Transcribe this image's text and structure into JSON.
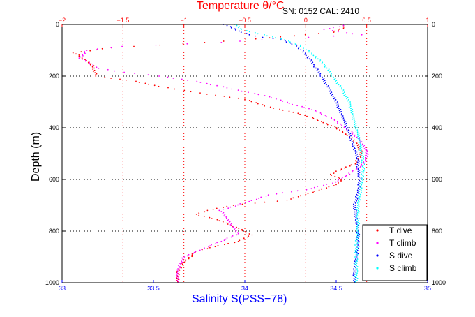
{
  "chart_data": {
    "type": "scatter",
    "title": "Temperature θ/°C",
    "serial_text": "SN: 0152  CAL: 2410",
    "xlabel": "Salinity S(PSS−78)",
    "ylabel": "Depth (m)",
    "grid": true,
    "legend_position": "bottom-right",
    "salinity_axis": {
      "lim": [
        33,
        35
      ],
      "ticks": [
        33,
        33.5,
        34,
        34.5,
        35
      ],
      "tick_labels": [
        "33",
        "33.5",
        "34",
        "34.5",
        "35"
      ],
      "color": "#0000ff"
    },
    "temperature_axis": {
      "lim": [
        -2,
        1
      ],
      "ticks": [
        -2,
        -1.5,
        -1,
        -0.5,
        0,
        0.5,
        1
      ],
      "tick_labels": [
        "−2",
        "−1.5",
        "−1",
        "−0.5",
        "0",
        "0.5",
        "1"
      ],
      "color": "#ff0000"
    },
    "depth_axis": {
      "lim": [
        0,
        1000
      ],
      "reversed": true,
      "ticks": [
        0,
        200,
        400,
        600,
        800,
        1000
      ],
      "tick_labels": [
        "0",
        "200",
        "400",
        "600",
        "800",
        "1000"
      ]
    },
    "series": [
      {
        "name": "T dive",
        "axis": "temperature",
        "color": "#ff0000",
        "points": [
          [
            0.3,
            0
          ],
          [
            0.32,
            10
          ],
          [
            0.22,
            30
          ],
          [
            0.0,
            40
          ],
          [
            -0.5,
            60
          ],
          [
            -1.0,
            75
          ],
          [
            -1.6,
            90
          ],
          [
            -1.9,
            110
          ],
          [
            -1.8,
            140
          ],
          [
            -1.75,
            160
          ],
          [
            -1.72,
            200
          ],
          [
            -1.4,
            220
          ],
          [
            -1.2,
            240
          ],
          [
            -1.0,
            255
          ],
          [
            -0.8,
            270
          ],
          [
            -0.5,
            290
          ],
          [
            -0.3,
            320
          ],
          [
            -0.1,
            340
          ],
          [
            0.05,
            360
          ],
          [
            0.15,
            380
          ],
          [
            0.25,
            400
          ],
          [
            0.35,
            430
          ],
          [
            0.42,
            460
          ],
          [
            0.45,
            490
          ],
          [
            0.45,
            510
          ],
          [
            0.4,
            540
          ],
          [
            0.3,
            560
          ],
          [
            0.2,
            580
          ],
          [
            0.3,
            600
          ],
          [
            0.25,
            620
          ],
          [
            0.05,
            650
          ],
          [
            -0.15,
            680
          ],
          [
            -0.6,
            700
          ],
          [
            -0.8,
            720
          ],
          [
            -0.9,
            735
          ],
          [
            -0.7,
            760
          ],
          [
            -0.55,
            790
          ],
          [
            -0.45,
            815
          ],
          [
            -0.55,
            840
          ],
          [
            -0.75,
            860
          ],
          [
            -0.9,
            880
          ],
          [
            -1.0,
            920
          ],
          [
            -1.05,
            960
          ],
          [
            -1.05,
            1000
          ]
        ]
      },
      {
        "name": "T climb",
        "axis": "temperature",
        "color": "#ff00ff",
        "points": [
          [
            0.35,
            0
          ],
          [
            0.15,
            20
          ],
          [
            0.45,
            40
          ],
          [
            -0.2,
            55
          ],
          [
            -0.7,
            70
          ],
          [
            -1.5,
            85
          ],
          [
            -1.8,
            100
          ],
          [
            -1.85,
            130
          ],
          [
            -1.7,
            170
          ],
          [
            -1.5,
            185
          ],
          [
            -1.2,
            200
          ],
          [
            -0.9,
            220
          ],
          [
            -0.6,
            250
          ],
          [
            -0.3,
            280
          ],
          [
            -0.1,
            310
          ],
          [
            0.05,
            330
          ],
          [
            0.2,
            360
          ],
          [
            0.3,
            390
          ],
          [
            0.38,
            420
          ],
          [
            0.45,
            450
          ],
          [
            0.5,
            490
          ],
          [
            0.5,
            520
          ],
          [
            0.45,
            550
          ],
          [
            0.35,
            580
          ],
          [
            0.25,
            610
          ],
          [
            0.0,
            640
          ],
          [
            -0.3,
            660
          ],
          [
            -0.5,
            690
          ],
          [
            -0.7,
            720
          ],
          [
            -0.65,
            750
          ],
          [
            -0.6,
            780
          ],
          [
            -0.55,
            810
          ],
          [
            -0.7,
            840
          ],
          [
            -0.85,
            870
          ],
          [
            -1.0,
            900
          ],
          [
            -1.05,
            950
          ],
          [
            -1.05,
            1000
          ]
        ]
      },
      {
        "name": "S dive",
        "axis": "salinity",
        "color": "#0000ff",
        "points": [
          [
            33.89,
            0
          ],
          [
            33.98,
            30
          ],
          [
            34.05,
            45
          ],
          [
            34.2,
            60
          ],
          [
            34.28,
            80
          ],
          [
            34.34,
            120
          ],
          [
            34.38,
            160
          ],
          [
            34.42,
            200
          ],
          [
            34.46,
            250
          ],
          [
            34.5,
            300
          ],
          [
            34.53,
            350
          ],
          [
            34.56,
            400
          ],
          [
            34.58,
            440
          ],
          [
            34.6,
            480
          ],
          [
            34.62,
            520
          ],
          [
            34.62,
            560
          ],
          [
            34.63,
            600
          ],
          [
            34.62,
            650
          ],
          [
            34.6,
            700
          ],
          [
            34.61,
            760
          ],
          [
            34.62,
            800
          ],
          [
            34.62,
            850
          ],
          [
            34.61,
            900
          ],
          [
            34.6,
            950
          ],
          [
            34.6,
            1000
          ]
        ]
      },
      {
        "name": "S climb",
        "axis": "salinity",
        "color": "#00ffff",
        "points": [
          [
            33.95,
            0
          ],
          [
            33.98,
            20
          ],
          [
            34.1,
            40
          ],
          [
            34.22,
            60
          ],
          [
            34.3,
            80
          ],
          [
            34.38,
            120
          ],
          [
            34.44,
            160
          ],
          [
            34.48,
            200
          ],
          [
            34.53,
            250
          ],
          [
            34.57,
            300
          ],
          [
            34.59,
            350
          ],
          [
            34.61,
            400
          ],
          [
            34.63,
            450
          ],
          [
            34.64,
            500
          ],
          [
            34.65,
            550
          ],
          [
            34.64,
            600
          ],
          [
            34.63,
            650
          ],
          [
            34.62,
            700
          ],
          [
            34.62,
            750
          ],
          [
            34.62,
            800
          ],
          [
            34.61,
            850
          ],
          [
            34.61,
            900
          ],
          [
            34.61,
            950
          ],
          [
            34.61,
            1000
          ]
        ]
      }
    ]
  }
}
